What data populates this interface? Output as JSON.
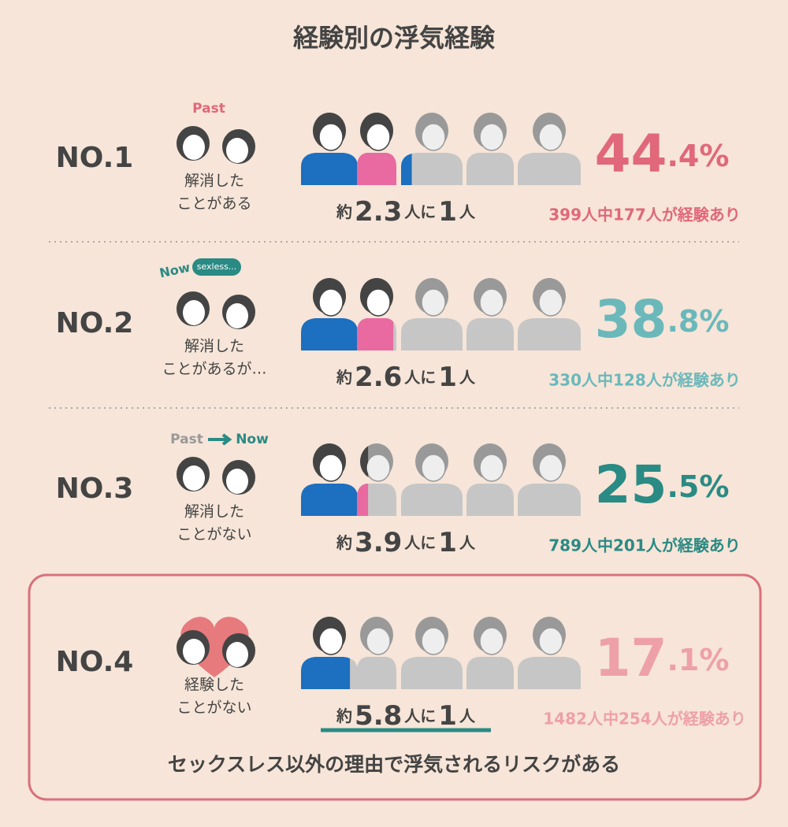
{
  "title": "経験別の浮気経験",
  "rows": [
    {
      "rank": "NO.1",
      "tags": [
        "Past"
      ],
      "caption": [
        "解消した",
        "ことがある"
      ],
      "ratio": {
        "prefix": "約",
        "value": 2.3,
        "mid": "人に",
        "one": 1,
        "suffix": "人"
      },
      "percent_main": "44",
      "percent_sub": ".4%",
      "count": "399人中177人が経験あり",
      "color": "#e0687a"
    },
    {
      "rank": "NO.2",
      "tags": [
        "Now",
        "sexless..."
      ],
      "caption": [
        "解消した",
        "ことがあるが…"
      ],
      "ratio": {
        "prefix": "約",
        "value": 2.6,
        "mid": "人に",
        "one": 1,
        "suffix": "人"
      },
      "percent_main": "38",
      "percent_sub": ".8%",
      "count": "330人中128人が経験あり",
      "color": "#6bb8bb"
    },
    {
      "rank": "NO.3",
      "tags": [
        "Past",
        "Now"
      ],
      "caption": [
        "解消した",
        "ことがない"
      ],
      "ratio": {
        "prefix": "約",
        "value": 3.9,
        "mid": "人に",
        "one": 1,
        "suffix": "人"
      },
      "percent_main": "25",
      "percent_sub": ".5%",
      "count": "789人中201人が経験あり",
      "color": "#2a8a84"
    },
    {
      "rank": "NO.4",
      "tags": [],
      "caption": [
        "経験した",
        "ことがない"
      ],
      "ratio": {
        "prefix": "約",
        "value": 5.8,
        "mid": "人に",
        "one": 1,
        "suffix": "人"
      },
      "percent_main": "17",
      "percent_sub": ".1%",
      "count": "1482人中254人が経験あり",
      "color": "#eea0a8"
    }
  ],
  "note": "セックスレス以外の理由で浮気されるリスクがある"
}
